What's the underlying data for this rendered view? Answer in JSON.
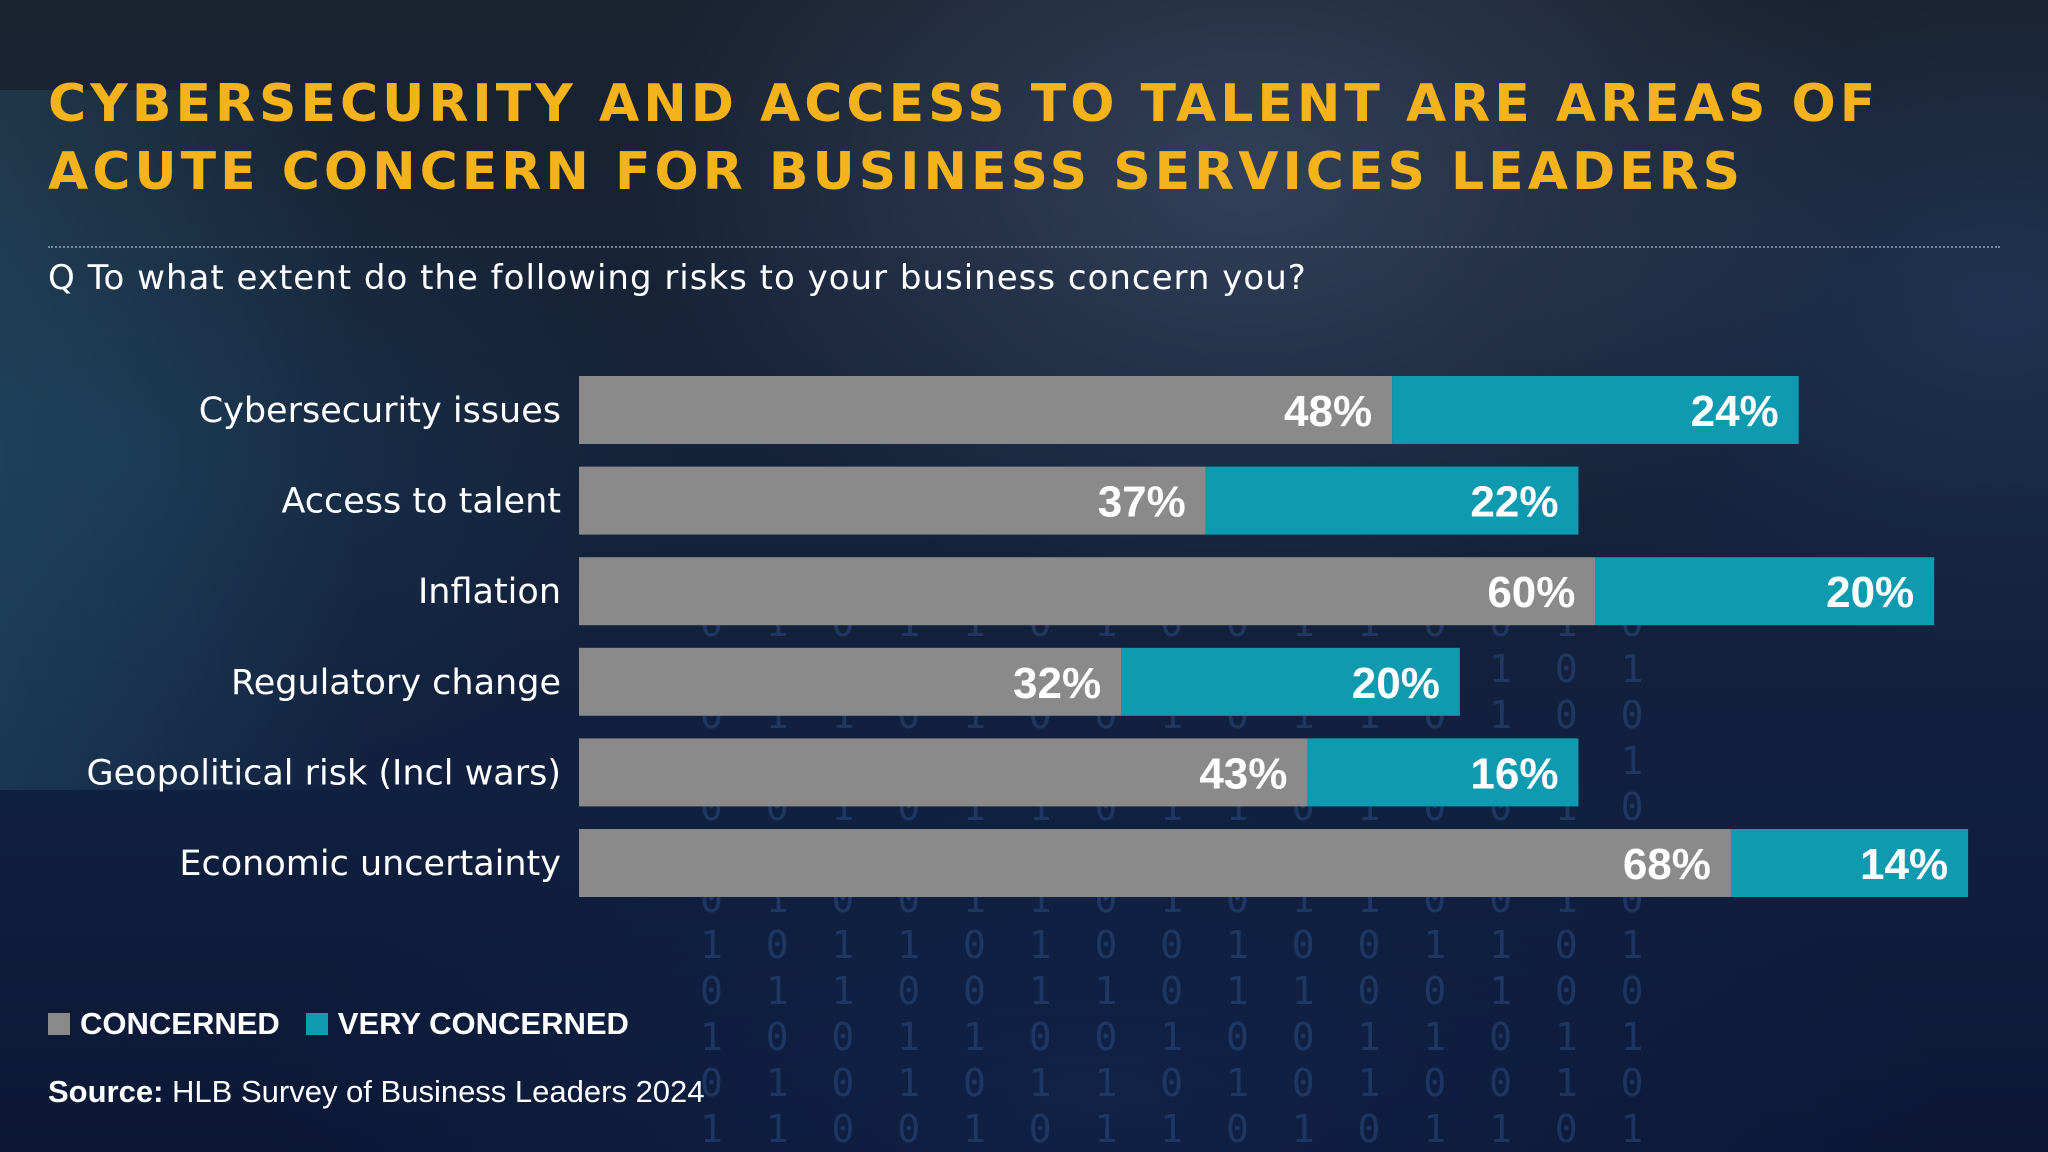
{
  "title_lines": [
    "CYBERSECURITY AND ACCESS TO TALENT ARE AREAS OF",
    "ACUTE CONCERN FOR BUSINESS SERVICES LEADERS"
  ],
  "question": "Q To what extent do the following risks to your business concern you?",
  "colors": {
    "title": "#f4b21b",
    "concerned": "#8a8a8a",
    "very_concerned": "#0e9bb0",
    "text": "#ffffff"
  },
  "chart_data": {
    "type": "bar",
    "orientation": "horizontal",
    "stacked": true,
    "value_suffix": "%",
    "xlim": [
      0,
      90
    ],
    "categories": [
      "Cybersecurity issues",
      "Access to talent",
      "Inflation",
      "Regulatory change",
      "Geopolitical risk (Incl wars)",
      "Economic uncertainty"
    ],
    "series": [
      {
        "name": "CONCERNED",
        "values": [
          48,
          37,
          60,
          32,
          43,
          68
        ]
      },
      {
        "name": "VERY CONCERNED",
        "values": [
          24,
          22,
          20,
          20,
          16,
          14
        ]
      }
    ],
    "legend_position": "bottom-left"
  },
  "legend": {
    "concerned": "CONCERNED",
    "very_concerned": "VERY CONCERNED"
  },
  "source": {
    "label": "Source:",
    "text": "HLB Survey of Business Leaders 2024"
  }
}
